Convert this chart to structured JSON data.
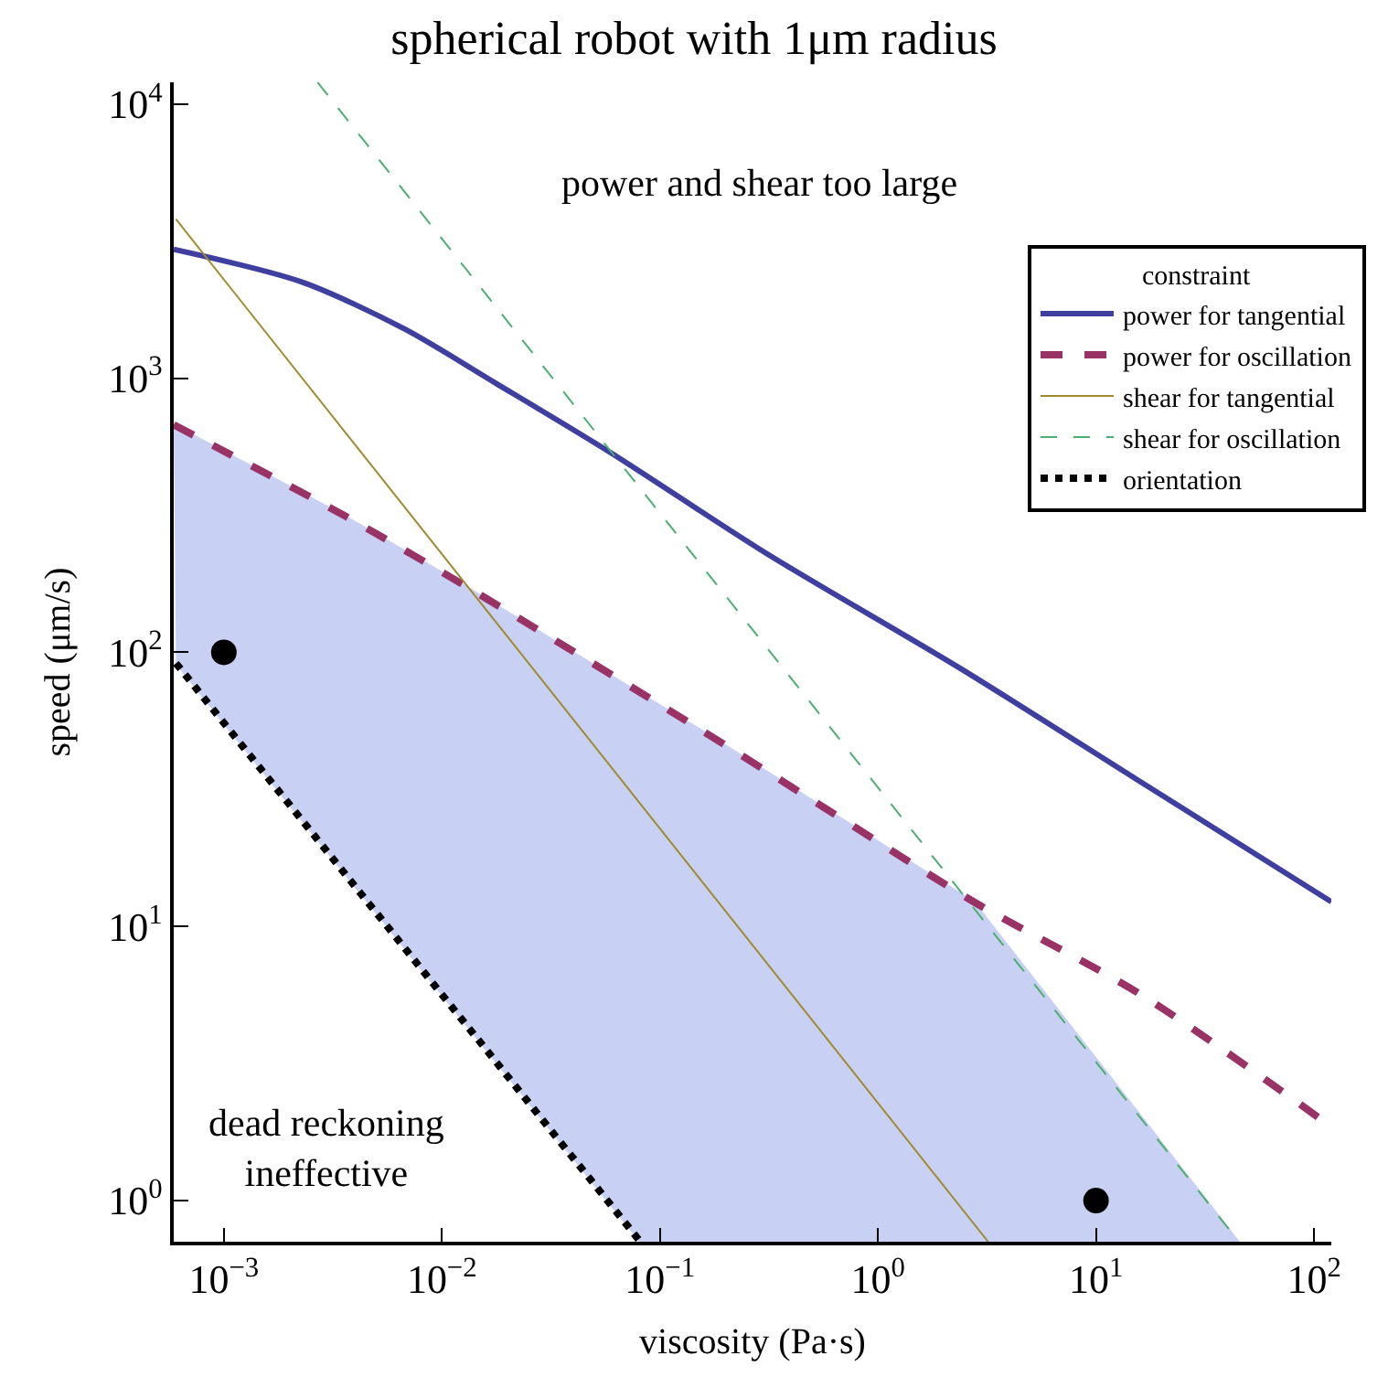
{
  "chart_data": {
    "type": "line",
    "title": "spherical robot with 1μm radius",
    "xlabel": "viscosity (Pa·s)",
    "ylabel": "speed (μm/s)",
    "legend_title": "constraint",
    "log": "xy",
    "legend": "top right",
    "marker": "none",
    "xlim": [
      0.000589,
      120
    ],
    "ylim": [
      0.708,
      12000
    ],
    "xticks": [
      {
        "value": 0.001,
        "label": "10$^{−3}$"
      },
      {
        "value": 0.01,
        "label": "10$^{−2}$"
      },
      {
        "value": 0.1,
        "label": "10$^{−1}$"
      },
      {
        "value": 1,
        "label": "10$^{0}$"
      },
      {
        "value": 10,
        "label": "10$^{1}$"
      },
      {
        "value": 100,
        "label": "10$^{2}$"
      }
    ],
    "yticks": [
      {
        "value": 1,
        "label": "10$^{0}$"
      },
      {
        "value": 10,
        "label": "10$^{1}$"
      },
      {
        "value": 100,
        "label": "10$^{2}$"
      },
      {
        "value": 1000,
        "label": "10$^{3}$"
      },
      {
        "value": 10000,
        "label": "10$^{4}$"
      }
    ],
    "annotations": [
      "power and shear too large",
      "dead reckoning\nineffective"
    ],
    "series": [
      {
        "type": "area",
        "color": "#c8d0f4",
        "x": [
          0.000589,
          0.00355,
          0.0129,
          0.0813,
          0.145,
          2.75,
          45.2
        ],
        "values": [
          676,
          316,
          174,
          70.8,
          53.7,
          12.3,
          0.708
        ]
      },
      {
        "name": "power for tangential",
        "color": "#3f3f9f",
        "line_style": "solid",
        "x": [
          0.000589,
          0.00229,
          0.00676,
          0.0178,
          0.0589,
          0.309,
          2.4,
          15.8,
          120
        ],
        "values": [
          2950,
          2240,
          1510,
          955,
          537,
          229,
          87.1,
          33.9,
          12.3
        ]
      },
      {
        "name": "power for oscillation",
        "color": "#993366",
        "line_style": "dashed",
        "x": [
          0.000589,
          0.00355,
          0.0129,
          0.145,
          0.631,
          2.75,
          16.2,
          120
        ],
        "values": [
          676,
          316,
          174,
          53.7,
          25.7,
          12.3,
          5.62,
          1.86
        ]
      },
      {
        "name": "shear for tangential",
        "color": "#a08a30",
        "line_style": "solid",
        "x": [
          0.000603,
          3.2
        ],
        "values": [
          3800,
          0.708
        ]
      },
      {
        "name": "shear for oscillation",
        "color": "#4caf70",
        "line_style": "dashed",
        "x": [
          0.00269,
          45.2
        ],
        "values": [
          12000,
          0.708
        ]
      },
      {
        "name": "orientation",
        "color": "#000000",
        "line_style": "dotted",
        "x": [
          0.000603,
          0.0813
        ],
        "values": [
          91.2,
          0.708
        ]
      },
      {
        "type": "scatter",
        "color": "#000000",
        "marker": "circle",
        "x": [
          0.001,
          10
        ],
        "values": [
          100,
          1
        ]
      }
    ]
  }
}
